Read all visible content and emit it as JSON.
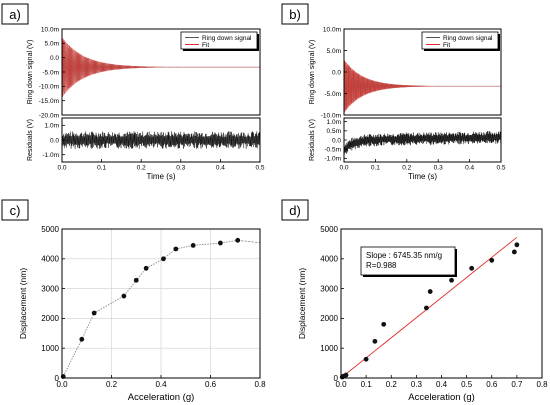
{
  "colors": {
    "signal": "#555555",
    "fit": "#e0302a",
    "residual": "#111111",
    "point": "#111111",
    "line": "#888888"
  },
  "panels": [
    {
      "label": "a)"
    },
    {
      "label": "b)"
    },
    {
      "label": "c)"
    },
    {
      "label": "d)"
    }
  ],
  "chart_data": [
    {
      "id": "a-top",
      "type": "line",
      "ylabel": "Ring down signal (V)",
      "xlim": [
        0,
        0.5
      ],
      "ylim": [
        -20,
        10
      ],
      "yticks": [
        "10.0m",
        "5.0m",
        "0.0",
        "-5.0m",
        "-10.0m",
        "-15.0m",
        "-20.0m"
      ],
      "ytick_values": [
        10,
        5,
        0,
        -5,
        -10,
        -15,
        -20
      ],
      "legend": [
        "Ring down signal",
        "Fit"
      ],
      "legend_position": "top-right",
      "series": [
        {
          "name": "Ring down signal",
          "offset": -3.3,
          "amplitude": 10.5,
          "decay_time": 0.055
        },
        {
          "name": "Fit",
          "offset": -3.3,
          "amplitude": 10.5,
          "decay_time": 0.055
        }
      ]
    },
    {
      "id": "a-bottom",
      "type": "line",
      "xlabel": "Time (s)",
      "ylabel": "Residuals (V)",
      "xlim": [
        0,
        0.5
      ],
      "xticks": [
        "0.0",
        "0.1",
        "0.2",
        "0.3",
        "0.4",
        "0.5"
      ],
      "xtick_values": [
        0,
        0.1,
        0.2,
        0.3,
        0.4,
        0.5
      ],
      "ylim": [
        -1.5,
        1.5
      ],
      "yticks": [
        "1.0m",
        "0.0",
        "-1.0m"
      ],
      "ytick_values": [
        1,
        0,
        -1
      ],
      "series": [
        {
          "name": "Residuals",
          "amplitude": 0.6
        }
      ]
    },
    {
      "id": "b-top",
      "type": "line",
      "ylabel": "Ring down signal (V)",
      "xlim": [
        0,
        0.5
      ],
      "ylim": [
        -10,
        10
      ],
      "yticks": [
        "10.0m",
        "5.0m",
        "0.0",
        "-5.0m",
        "-10.0m"
      ],
      "ytick_values": [
        10,
        5,
        0,
        -5,
        -10
      ],
      "legend": [
        "Ring down signal",
        "Fit"
      ],
      "legend_position": "top-right",
      "series": [
        {
          "name": "Ring down signal",
          "offset": -3.3,
          "amplitude": 6.2,
          "decay_time": 0.06
        },
        {
          "name": "Fit",
          "offset": -3.3,
          "amplitude": 6.2,
          "decay_time": 0.06
        }
      ]
    },
    {
      "id": "b-bottom",
      "type": "line",
      "xlabel": "Time (s)",
      "ylabel": "Residuals (V)",
      "xlim": [
        0,
        0.5
      ],
      "xticks": [
        "0.0",
        "0.1",
        "0.2",
        "0.3",
        "0.4",
        "0.5"
      ],
      "xtick_values": [
        0,
        0.1,
        0.2,
        0.3,
        0.4,
        0.5
      ],
      "ylim": [
        -1.2,
        1.2
      ],
      "yticks": [
        "1.0m",
        "0.5m",
        "0.0",
        "-0.5m",
        "-1.0m"
      ],
      "ytick_values": [
        1,
        0.5,
        0,
        -0.5,
        -1
      ],
      "series": [
        {
          "name": "Residuals",
          "amplitude": 0.35
        }
      ]
    },
    {
      "id": "c",
      "type": "scatter",
      "xlabel": "Acceleration (g)",
      "ylabel": "Displacement (nm)",
      "xlim": [
        0,
        0.8
      ],
      "ylim": [
        0,
        5000
      ],
      "xticks": [
        "0.0",
        "0.2",
        "0.4",
        "0.6",
        "0.8"
      ],
      "xtick_values": [
        0,
        0.2,
        0.4,
        0.6,
        0.8
      ],
      "yticks": [
        "0",
        "1000",
        "2000",
        "3000",
        "4000",
        "5000"
      ],
      "ytick_values": [
        0,
        1000,
        2000,
        3000,
        4000,
        5000
      ],
      "grid": true,
      "points": [
        {
          "x": 0.005,
          "y": 50
        },
        {
          "x": 0.08,
          "y": 1300
        },
        {
          "x": 0.13,
          "y": 2180
        },
        {
          "x": 0.25,
          "y": 2750
        },
        {
          "x": 0.3,
          "y": 3280
        },
        {
          "x": 0.34,
          "y": 3680
        },
        {
          "x": 0.41,
          "y": 4000
        },
        {
          "x": 0.46,
          "y": 4330
        },
        {
          "x": 0.53,
          "y": 4450
        },
        {
          "x": 0.64,
          "y": 4530
        },
        {
          "x": 0.71,
          "y": 4620
        }
      ],
      "trend_end": {
        "x": 0.8,
        "y": 4540
      }
    },
    {
      "id": "d",
      "type": "scatter",
      "xlabel": "Acceleration (g)",
      "ylabel": "Displacement (nm)",
      "xlim": [
        0,
        0.8
      ],
      "ylim": [
        0,
        5000
      ],
      "xticks": [
        "0.0",
        "0.1",
        "0.2",
        "0.3",
        "0.4",
        "0.5",
        "0.6",
        "0.7",
        "0.8"
      ],
      "xtick_values": [
        0,
        0.1,
        0.2,
        0.3,
        0.4,
        0.5,
        0.6,
        0.7,
        0.8
      ],
      "yticks": [
        "0",
        "1000",
        "2000",
        "3000",
        "4000",
        "5000"
      ],
      "ytick_values": [
        0,
        1000,
        2000,
        3000,
        4000,
        5000
      ],
      "annotation": [
        "Slope : 6745.35 nm/g",
        "R=0.988"
      ],
      "fit": {
        "slope": 6745.35,
        "x_range": [
          0,
          0.7
        ]
      },
      "points": [
        {
          "x": 0.005,
          "y": 30
        },
        {
          "x": 0.01,
          "y": 60
        },
        {
          "x": 0.02,
          "y": 100
        },
        {
          "x": 0.1,
          "y": 630
        },
        {
          "x": 0.135,
          "y": 1230
        },
        {
          "x": 0.17,
          "y": 1800
        },
        {
          "x": 0.34,
          "y": 2350
        },
        {
          "x": 0.355,
          "y": 2900
        },
        {
          "x": 0.44,
          "y": 3280
        },
        {
          "x": 0.52,
          "y": 3680
        },
        {
          "x": 0.6,
          "y": 3950
        },
        {
          "x": 0.69,
          "y": 4230
        },
        {
          "x": 0.7,
          "y": 4470
        }
      ]
    }
  ]
}
